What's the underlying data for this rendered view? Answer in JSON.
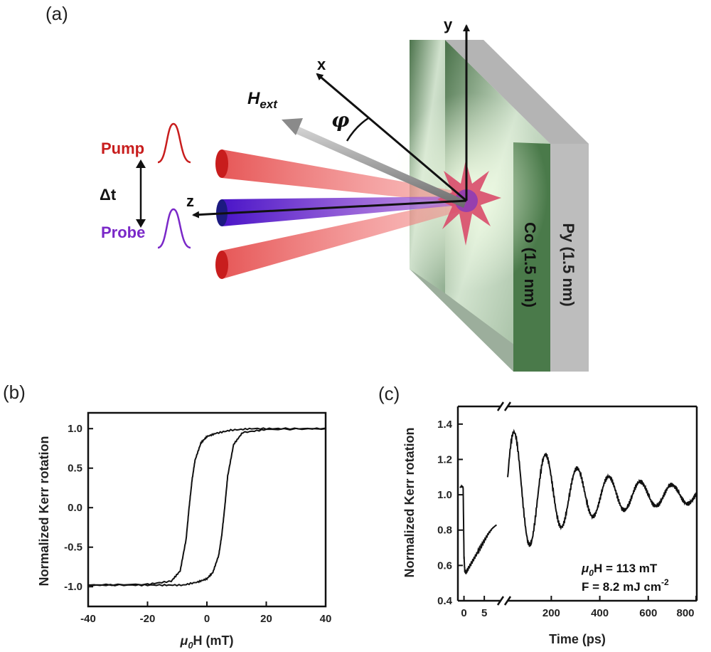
{
  "panel_a": {
    "label": "(a)",
    "axis_x": "x",
    "axis_y": "y",
    "axis_z": "z",
    "field_main": "H",
    "field_sub": "ext",
    "angle": "φ",
    "pump": "Pump",
    "probe": "Probe",
    "delay": "Δt",
    "layer1": "Co (1.5 nm)",
    "layer2": "Py (1.5 nm)",
    "colors": {
      "pump": "#cc1f1f",
      "probe": "#6a1fb5",
      "co_layer": "#4f7a4f",
      "py_layer": "#b9b9b9"
    }
  },
  "chart_data": [
    {
      "id": "b",
      "label": "(b)",
      "type": "line",
      "xlabel_main": "μ",
      "xlabel_sub": "0",
      "xlabel_rest": "H (mT)",
      "ylabel": "Normalized Kerr rotation",
      "xlim": [
        -40,
        40
      ],
      "ylim": [
        -1.25,
        1.2
      ],
      "xticks": [
        "-40",
        "-20",
        "0",
        "20",
        "40"
      ],
      "xtick_values": [
        -40,
        -20,
        0,
        20,
        40
      ],
      "yticks": [
        "-1.0",
        "-0.5",
        "0.0",
        "0.5",
        "1.0"
      ],
      "ytick_values": [
        -1.0,
        -0.5,
        0.0,
        0.5,
        1.0
      ],
      "series": [
        {
          "values_x": [
            -40,
            -20,
            -12,
            -9,
            -7,
            -6,
            -5,
            -4,
            -2,
            0,
            3,
            8,
            15,
            25,
            40
          ],
          "values_y": [
            -0.98,
            -0.97,
            -0.93,
            -0.8,
            -0.4,
            0.0,
            0.35,
            0.6,
            0.82,
            0.9,
            0.94,
            0.98,
            1.0,
            1.0,
            1.0
          ]
        },
        {
          "values_x": [
            40,
            20,
            12,
            9,
            7,
            6,
            5,
            4,
            2,
            0,
            -3,
            -8,
            -15,
            -25,
            -40
          ],
          "values_y": [
            1.0,
            0.99,
            0.95,
            0.8,
            0.4,
            0.0,
            -0.35,
            -0.6,
            -0.82,
            -0.9,
            -0.94,
            -0.98,
            -0.98,
            -0.98,
            -0.98
          ]
        }
      ]
    },
    {
      "id": "c",
      "label": "(c)",
      "type": "line",
      "xlabel": "Time (ps)",
      "ylabel": "Normalized Kerr rotation",
      "ylim": [
        0.4,
        1.5
      ],
      "yticks": [
        "0.4",
        "0.6",
        "0.8",
        "1.0",
        "1.2",
        "1.4"
      ],
      "ytick_values": [
        0.4,
        0.6,
        0.8,
        1.0,
        1.2,
        1.4
      ],
      "xticks_left": [
        "0",
        "5"
      ],
      "xtick_values_left": [
        0,
        5
      ],
      "xticks_right": [
        "200",
        "400",
        "600",
        "800"
      ],
      "xtick_values_right": [
        200,
        400,
        600,
        800
      ],
      "xlim_left": [
        -1.5,
        9
      ],
      "xlim_right": [
        20,
        800
      ],
      "annotation1_main": "μ",
      "annotation1_sub": "0",
      "annotation1_rest": "H = 113 mT",
      "annotation2_main": "F = 8.2 mJ cm",
      "annotation2_sup": "-2",
      "series_left": {
        "x": [
          -1,
          -0.5,
          -0.2,
          0,
          0.2,
          0.5,
          1,
          2,
          3,
          4,
          5,
          6,
          7,
          8
        ],
        "y": [
          1.04,
          1.05,
          1.04,
          0.65,
          0.57,
          0.56,
          0.58,
          0.62,
          0.66,
          0.7,
          0.74,
          0.78,
          0.81,
          0.83
        ]
      }
    }
  ]
}
